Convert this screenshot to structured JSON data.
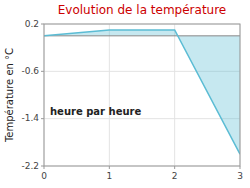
{
  "chart_data": {
    "type": "area",
    "title": "Evolution de la température",
    "xlabel": "heure par heure",
    "ylabel": "Température en °C",
    "x": [
      0,
      1,
      2,
      3
    ],
    "values": [
      0.0,
      0.1,
      0.1,
      -2.0
    ],
    "color": "#5bbcd4",
    "xlim": [
      0,
      3
    ],
    "ylim": [
      -2.2,
      0.2
    ],
    "xticks": [
      0,
      1,
      2,
      3
    ],
    "yticks": [
      0.2,
      -0.6,
      -1.4,
      -2.2
    ],
    "grid": true
  }
}
